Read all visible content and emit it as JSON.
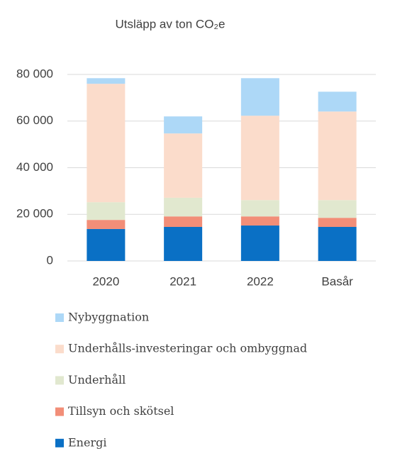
{
  "chart_data": {
    "type": "stacked_bar",
    "title": "Utsläpp av ton CO₂e",
    "categories": [
      "2020",
      "2021",
      "2022",
      "Basår"
    ],
    "series": [
      {
        "name": "Energi",
        "color": "#0a70c5",
        "values": [
          13700,
          14600,
          15200,
          14600
        ]
      },
      {
        "name": "Tillsyn och skötsel",
        "color": "#f28e78",
        "values": [
          3900,
          4500,
          3900,
          3900
        ]
      },
      {
        "name": "Underhåll",
        "color": "#e1e8cf",
        "values": [
          7600,
          8000,
          7000,
          7600
        ]
      },
      {
        "name": "Underhålls-investeringar och ombyggnad",
        "color": "#fbdccb",
        "values": [
          50800,
          27600,
          36200,
          38000
        ]
      },
      {
        "name": "Nybyggnation",
        "color": "#add8f7",
        "values": [
          2400,
          7300,
          16100,
          8500
        ]
      }
    ],
    "ylim": [
      0,
      80000
    ],
    "yticks": [
      0,
      {
        "value": 20000,
        "label": "20 000"
      },
      {
        "value": 40000,
        "label": "40 000"
      },
      {
        "value": 60000,
        "label": "60 000"
      },
      {
        "value": 80000,
        "label": "80 000"
      }
    ],
    "grid": true
  }
}
